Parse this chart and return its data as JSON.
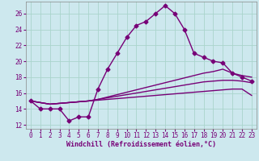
{
  "xlabel": "Windchill (Refroidissement éolien,°C)",
  "background_color": "#cde8ee",
  "grid_color": "#aad4cc",
  "line_color": "#770077",
  "x_ticks": [
    0,
    1,
    2,
    3,
    4,
    5,
    6,
    7,
    8,
    9,
    10,
    11,
    12,
    13,
    14,
    15,
    16,
    17,
    18,
    19,
    20,
    21,
    22,
    23
  ],
  "y_ticks": [
    12,
    14,
    16,
    18,
    20,
    22,
    24,
    26
  ],
  "ylim": [
    11.5,
    27.5
  ],
  "xlim": [
    -0.5,
    23.5
  ],
  "series_main": [
    15.0,
    14.0,
    14.0,
    14.0,
    12.5,
    13.0,
    13.0,
    16.5,
    19.0,
    21.0,
    23.0,
    24.5,
    25.0,
    26.0,
    27.0,
    26.0,
    24.0,
    21.0,
    20.5,
    20.0,
    19.8,
    18.5,
    18.0,
    17.5
  ],
  "series_fan": [
    [
      15.0,
      14.8,
      14.6,
      14.7,
      14.8,
      14.9,
      15.0,
      15.2,
      15.5,
      15.8,
      16.1,
      16.4,
      16.7,
      17.0,
      17.3,
      17.6,
      17.9,
      18.2,
      18.5,
      18.7,
      19.0,
      18.5,
      18.2,
      18.0
    ],
    [
      15.0,
      14.8,
      14.6,
      14.7,
      14.8,
      14.9,
      15.0,
      15.2,
      15.4,
      15.6,
      15.8,
      16.0,
      16.2,
      16.4,
      16.6,
      16.8,
      17.0,
      17.2,
      17.4,
      17.5,
      17.6,
      17.6,
      17.5,
      17.3
    ],
    [
      15.0,
      14.8,
      14.6,
      14.7,
      14.8,
      14.9,
      15.0,
      15.1,
      15.2,
      15.3,
      15.4,
      15.5,
      15.6,
      15.7,
      15.8,
      15.9,
      16.0,
      16.1,
      16.2,
      16.3,
      16.4,
      16.5,
      16.5,
      15.7
    ]
  ],
  "marker": "D",
  "marker_size": 2.5,
  "line_width": 1.0,
  "tick_fontsize": 5.5,
  "label_fontsize": 6.0
}
